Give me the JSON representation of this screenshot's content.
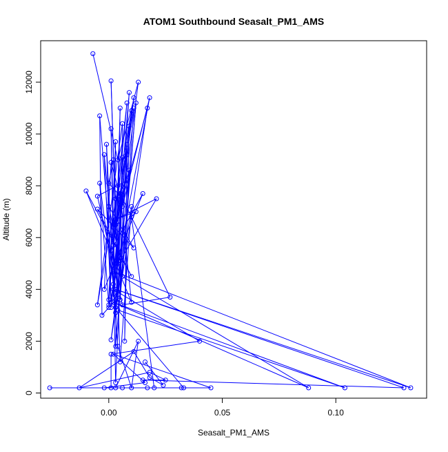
{
  "chart_data": {
    "type": "line",
    "title": "ATOM1 Southbound Seasalt_PM1_AMS",
    "xlabel": "Seasalt_PM1_AMS",
    "ylabel": "Altitude (m)",
    "xlim": [
      -0.03,
      0.14
    ],
    "ylim": [
      -200,
      13600
    ],
    "x_ticks": [
      {
        "value": 0.0,
        "label": "0.00"
      },
      {
        "value": 0.05,
        "label": "0.05"
      },
      {
        "value": 0.1,
        "label": "0.10"
      }
    ],
    "y_ticks": [
      {
        "value": 0,
        "label": "0"
      },
      {
        "value": 2000,
        "label": "2000"
      },
      {
        "value": 4000,
        "label": "4000"
      },
      {
        "value": 6000,
        "label": "6000"
      },
      {
        "value": 8000,
        "label": "8000"
      },
      {
        "value": 10000,
        "label": "10000"
      },
      {
        "value": 12000,
        "label": "12000"
      }
    ],
    "grid": false,
    "legend": "none",
    "marker": "open-circle",
    "series": [
      {
        "color": "#0000ff",
        "points": [
          [
            -0.007,
            13100
          ],
          [
            0.004,
            9000
          ],
          [
            0.013,
            12000
          ],
          [
            0.006,
            7200
          ],
          [
            0.018,
            11400
          ],
          [
            0.004,
            5000
          ],
          [
            0.009,
            11600
          ],
          [
            0.001,
            3300
          ],
          [
            0.011,
            11400
          ],
          [
            0.003,
            6500
          ],
          [
            0.017,
            11000
          ],
          [
            0.006,
            4500
          ],
          [
            0.011,
            11000
          ],
          [
            0.002,
            5700
          ],
          [
            0.009,
            10300
          ],
          [
            0.007,
            2000
          ],
          [
            0.008,
            9200
          ],
          [
            0.004,
            3500
          ],
          [
            0.001,
            12050
          ],
          [
            0.005,
            1200
          ],
          [
            0.01,
            7200
          ],
          [
            0.001,
            2050
          ],
          [
            0.007,
            6100
          ],
          [
            0.0,
            3300
          ],
          [
            0.002,
            3500
          ],
          [
            -0.003,
            3000
          ],
          [
            -0.004,
            10700
          ],
          [
            0.003,
            3100
          ],
          [
            0.001,
            10200
          ],
          [
            0.003,
            400
          ],
          [
            0.008,
            9600
          ],
          [
            0.003,
            4900
          ],
          [
            0.005,
            11000
          ],
          [
            0.003,
            1800
          ],
          [
            0.012,
            11200
          ],
          [
            0.005,
            3600
          ],
          [
            0.006,
            10400
          ],
          [
            -0.005,
            3400
          ],
          [
            0.01,
            10900
          ],
          [
            0.002,
            3700
          ],
          [
            0.003,
            9700
          ],
          [
            0.0,
            3600
          ],
          [
            0.008,
            11200
          ],
          [
            0.002,
            6400
          ],
          [
            0.009,
            8600
          ],
          [
            0.003,
            3300
          ],
          [
            0.006,
            9100
          ],
          [
            0.004,
            3800
          ],
          [
            -0.002,
            9200
          ],
          [
            0.001,
            3500
          ],
          [
            -0.001,
            9600
          ],
          [
            0.002,
            4200
          ],
          [
            -0.004,
            8100
          ],
          [
            0.0,
            3400
          ],
          [
            0.004,
            8000
          ],
          [
            0.001,
            5500
          ],
          [
            0.015,
            7700
          ],
          [
            -0.002,
            4000
          ],
          [
            0.001,
            8900
          ],
          [
            0.005,
            7600
          ],
          [
            0.0,
            8100
          ],
          [
            0.002,
            9000
          ],
          [
            0.003,
            7500
          ],
          [
            0.008,
            8200
          ],
          [
            -0.005,
            7600
          ],
          [
            0.006,
            3400
          ],
          [
            0.027,
            3700
          ],
          [
            0.005,
            7700
          ],
          [
            0.01,
            3500
          ],
          [
            -0.01,
            7800
          ],
          [
            0.01,
            4500
          ],
          [
            -0.005,
            7100
          ],
          [
            0.011,
            5600
          ],
          [
            0.0,
            7200
          ],
          [
            0.005,
            5100
          ],
          [
            0.021,
            7500
          ],
          [
            0.003,
            6700
          ],
          [
            0.012,
            7000
          ],
          [
            0.01,
            6800
          ],
          [
            0.02,
            200
          ],
          [
            0.003,
            200
          ],
          [
            0.013,
            2000
          ],
          [
            0.01,
            200
          ],
          [
            0.004,
            1800
          ],
          [
            0.002,
            4000
          ],
          [
            0.04,
            2000
          ],
          [
            0.001,
            1500
          ],
          [
            0.001,
            200
          ],
          [
            0.045,
            200
          ],
          [
            0.002,
            1500
          ],
          [
            0.016,
            400
          ],
          [
            -0.002,
            200
          ],
          [
            0.006,
            200
          ],
          [
            0.032,
            200
          ],
          [
            -0.026,
            200
          ],
          [
            0.017,
            200
          ],
          [
            0.033,
            200
          ],
          [
            0.004,
            3200
          ],
          [
            0.104,
            200
          ],
          [
            0.002,
            3500
          ],
          [
            0.088,
            200
          ],
          [
            0.002,
            4700
          ],
          [
            0.133,
            200
          ],
          [
            0.003,
            4000
          ],
          [
            0.13,
            200
          ],
          [
            0.015,
            500
          ],
          [
            0.025,
            500
          ],
          [
            0.018,
            800
          ],
          [
            -0.013,
            200
          ],
          [
            0.011,
            1600
          ],
          [
            0.018,
            600
          ],
          [
            0.024,
            300
          ],
          [
            0.016,
            1200
          ]
        ]
      }
    ]
  }
}
